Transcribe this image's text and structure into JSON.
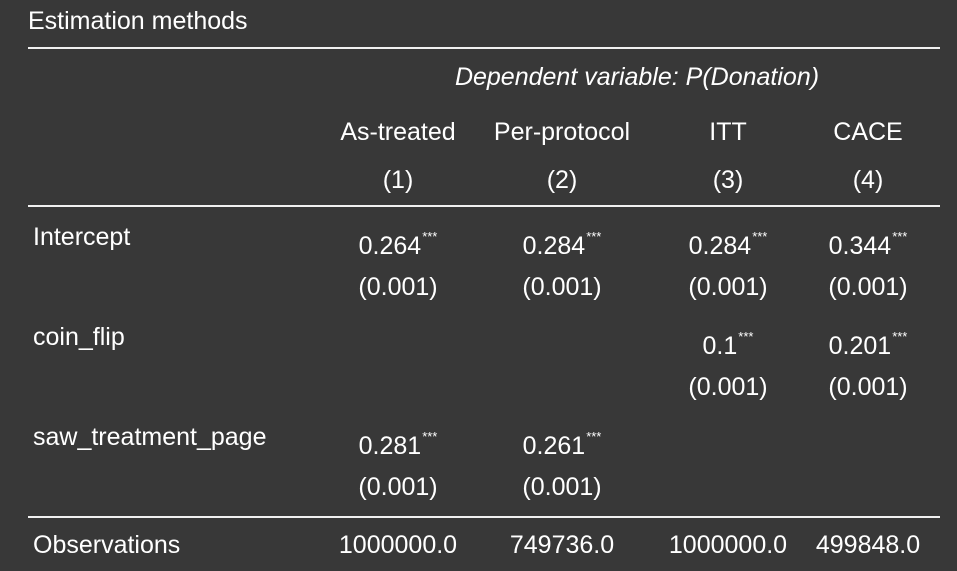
{
  "caption": "Estimation methods",
  "header": {
    "dependent_variable": "Dependent variable: P(Donation)",
    "columns": [
      {
        "name": "As-treated",
        "number": "(1)"
      },
      {
        "name": "Per-protocol",
        "number": "(2)"
      },
      {
        "name": "ITT",
        "number": "(3)"
      },
      {
        "name": "CACE",
        "number": "(4)"
      }
    ]
  },
  "rows": [
    {
      "label": "Intercept",
      "coefs": [
        {
          "value": "0.264",
          "stars": "***"
        },
        {
          "value": "0.284",
          "stars": "***"
        },
        {
          "value": "0.284",
          "stars": "***"
        },
        {
          "value": "0.344",
          "stars": "***"
        }
      ],
      "ses": [
        "(0.001)",
        "(0.001)",
        "(0.001)",
        "(0.001)"
      ]
    },
    {
      "label": "coin_flip",
      "coefs": [
        {
          "value": "",
          "stars": ""
        },
        {
          "value": "",
          "stars": ""
        },
        {
          "value": "0.1",
          "stars": "***"
        },
        {
          "value": "0.201",
          "stars": "***"
        }
      ],
      "ses": [
        "",
        "",
        "(0.001)",
        "(0.001)"
      ]
    },
    {
      "label": "saw_treatment_page",
      "coefs": [
        {
          "value": "0.281",
          "stars": "***"
        },
        {
          "value": "0.261",
          "stars": "***"
        },
        {
          "value": "",
          "stars": ""
        },
        {
          "value": "",
          "stars": ""
        }
      ],
      "ses": [
        "(0.001)",
        "(0.001)",
        "",
        ""
      ]
    }
  ],
  "observations": {
    "label": "Observations",
    "values": [
      "1000000.0",
      "749736.0",
      "1000000.0",
      "499848.0"
    ]
  }
}
